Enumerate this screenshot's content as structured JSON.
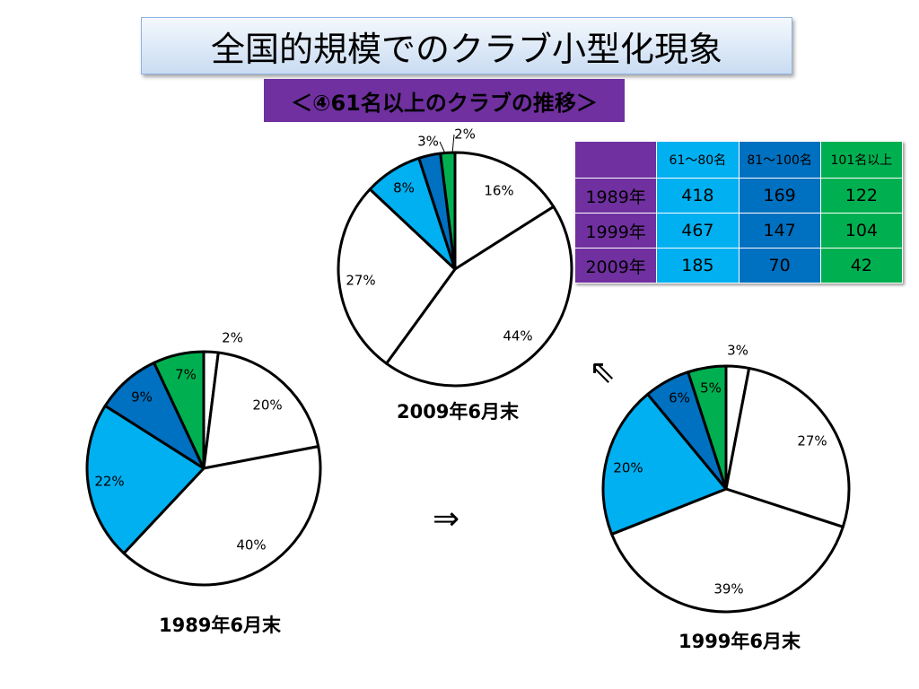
{
  "title": "全国的規模でのクラブ小型化現象",
  "subtitle": "＜④61名以上のクラブの推移＞",
  "colors": {
    "white_slice": "#ffffff",
    "light_blue": "#00b0f0",
    "mid_blue": "#0070c0",
    "green": "#00b050",
    "purple": "#7030a0"
  },
  "arrows": {
    "right": "⇒",
    "upleft": "⇖"
  },
  "table": {
    "headers": [
      "61～80名",
      "81～100名",
      "101名以上"
    ],
    "rows": [
      {
        "label": "1989年",
        "values": [
          "418",
          "169",
          "122"
        ]
      },
      {
        "label": "1999年",
        "values": [
          "467",
          "147",
          "104"
        ]
      },
      {
        "label": "2009年",
        "values": [
          "185",
          "70",
          "42"
        ]
      }
    ]
  },
  "chart_data": [
    {
      "type": "pie",
      "caption": "1989年6月末",
      "slices": [
        {
          "value": 2,
          "label": "2%",
          "color": "#ffffff"
        },
        {
          "value": 20,
          "label": "20%",
          "color": "#ffffff"
        },
        {
          "value": 40,
          "label": "40%",
          "color": "#ffffff"
        },
        {
          "value": 22,
          "label": "22%",
          "color": "#00b0f0"
        },
        {
          "value": 9,
          "label": "9%",
          "color": "#0070c0"
        },
        {
          "value": 7,
          "label": "7%",
          "color": "#00b050"
        }
      ]
    },
    {
      "type": "pie",
      "caption": "2009年6月末",
      "slices": [
        {
          "value": 16,
          "label": "16%",
          "color": "#ffffff"
        },
        {
          "value": 44,
          "label": "44%",
          "color": "#ffffff"
        },
        {
          "value": 27,
          "label": "27%",
          "color": "#ffffff"
        },
        {
          "value": 8,
          "label": "8%",
          "color": "#00b0f0"
        },
        {
          "value": 3,
          "label": "3%",
          "color": "#0070c0"
        },
        {
          "value": 2,
          "label": "2%",
          "color": "#00b050"
        }
      ]
    },
    {
      "type": "pie",
      "caption": "1999年6月末",
      "slices": [
        {
          "value": 3,
          "label": "3%",
          "color": "#ffffff"
        },
        {
          "value": 27,
          "label": "27%",
          "color": "#ffffff"
        },
        {
          "value": 39,
          "label": "39%",
          "color": "#ffffff"
        },
        {
          "value": 20,
          "label": "20%",
          "color": "#00b0f0"
        },
        {
          "value": 6,
          "label": "6%",
          "color": "#0070c0"
        },
        {
          "value": 5,
          "label": "5%",
          "color": "#00b050"
        }
      ]
    }
  ]
}
